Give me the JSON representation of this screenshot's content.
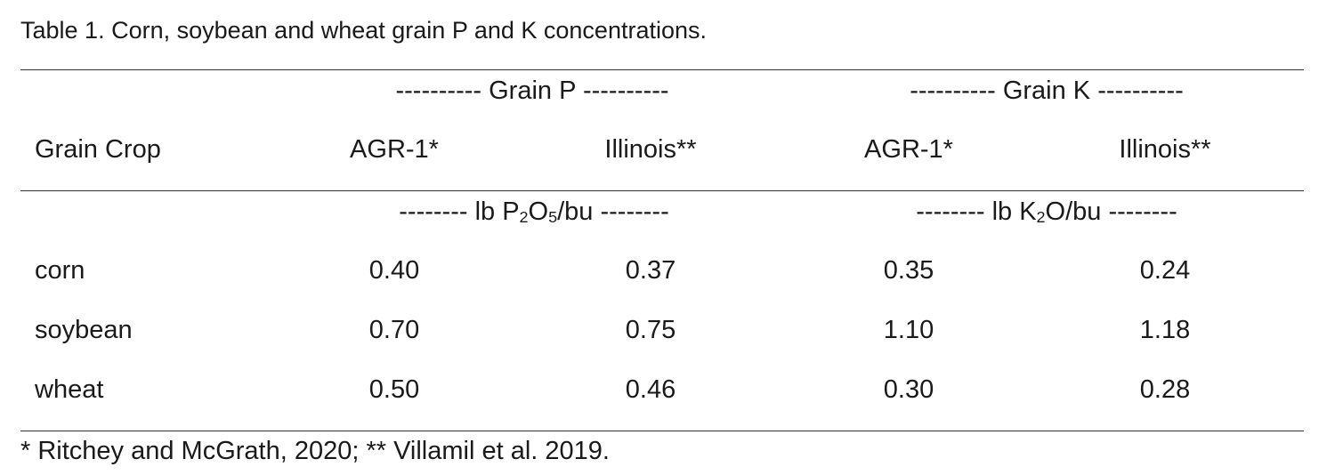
{
  "caption": "Table 1. Corn, soybean and wheat grain P and K concentrations.",
  "group_headers": {
    "grain_p": "---------- Grain P ----------",
    "grain_k": "---------- Grain K ----------"
  },
  "column_headers": {
    "crop": "Grain Crop",
    "p_agr1": "AGR-1*",
    "p_illinois": "Illinois**",
    "k_agr1": "AGR-1*",
    "k_illinois": "Illinois**"
  },
  "units": {
    "p_prefix": "-------- lb P",
    "p_sub1": "2",
    "p_mid": "O",
    "p_sub2": "5",
    "p_suffix": "/bu --------",
    "k_prefix": "-------- lb K",
    "k_sub1": "2",
    "k_suffix": "O/bu --------"
  },
  "rows": [
    {
      "crop": "corn",
      "p_agr1": "0.40",
      "p_illinois": "0.37",
      "k_agr1": "0.35",
      "k_illinois": "0.24"
    },
    {
      "crop": "soybean",
      "p_agr1": "0.70",
      "p_illinois": "0.75",
      "k_agr1": "1.10",
      "k_illinois": "1.18"
    },
    {
      "crop": "wheat",
      "p_agr1": "0.50",
      "p_illinois": "0.46",
      "k_agr1": "0.30",
      "k_illinois": "0.28"
    }
  ],
  "footnote": "* Ritchey and McGrath, 2020; ** Villamil et al. 2019."
}
